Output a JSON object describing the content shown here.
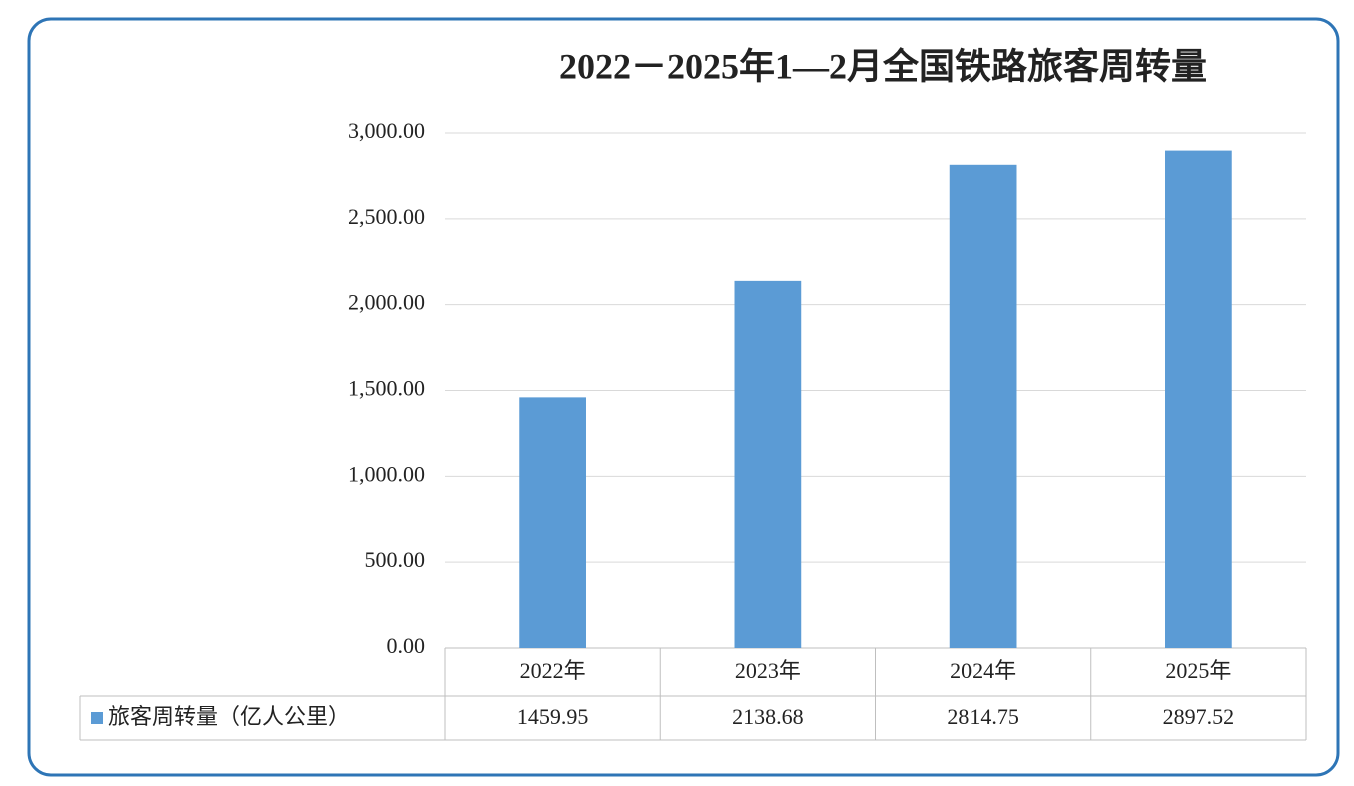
{
  "chart_data": {
    "type": "bar",
    "title": "2022－2025年1—2月全国铁路旅客周转量",
    "categories": [
      "2022年",
      "2023年",
      "2024年",
      "2025年"
    ],
    "series": [
      {
        "name": "旅客周转量（亿人公里）",
        "color": "#5b9bd5",
        "values": [
          1459.95,
          2138.68,
          2814.75,
          2897.52
        ]
      }
    ],
    "ylim": [
      0,
      3000
    ],
    "yticks": [
      {
        "value": 0,
        "label": "0.00"
      },
      {
        "value": 500,
        "label": "500.00"
      },
      {
        "value": 1000,
        "label": "1,000.00"
      },
      {
        "value": 1500,
        "label": "1,500.00"
      },
      {
        "value": 2000,
        "label": "2,000.00"
      },
      {
        "value": 2500,
        "label": "2,500.00"
      },
      {
        "value": 3000,
        "label": "3,000.00"
      }
    ],
    "grid": true,
    "data_table": true
  }
}
